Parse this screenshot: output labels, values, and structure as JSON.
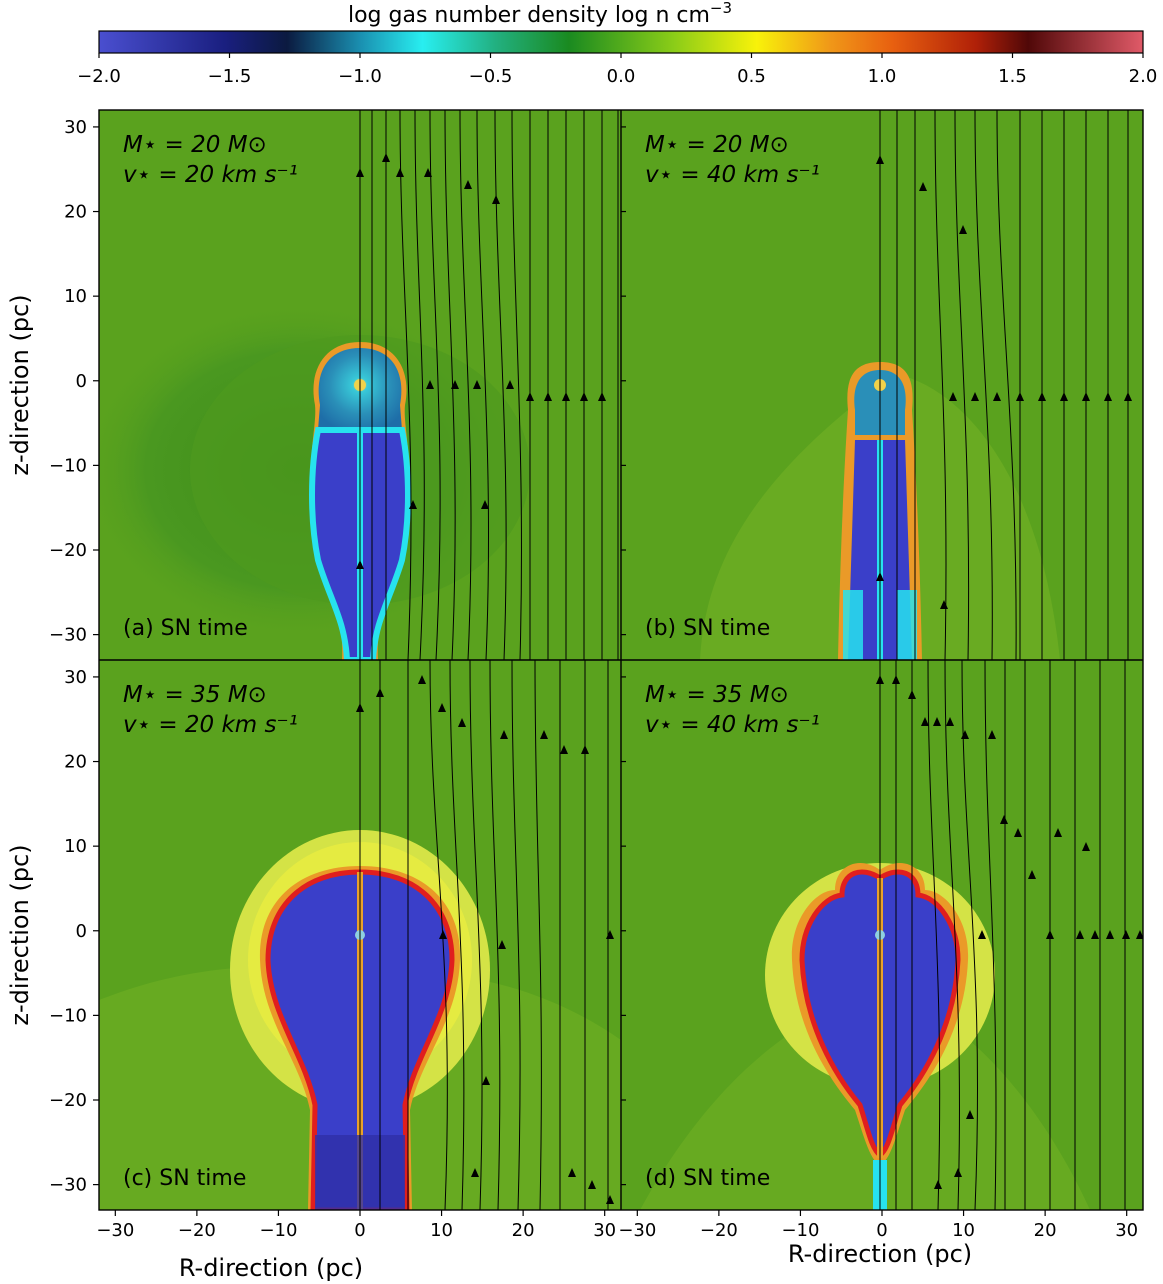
{
  "figure": {
    "colorbar": {
      "label": "log gas number density log n cm",
      "label_superscript": "−3",
      "ticks": [
        "−2.0",
        "−1.5",
        "−1.0",
        "−0.5",
        "0.0",
        "0.5",
        "1.0",
        "1.5",
        "2.0"
      ],
      "range": [
        -2.0,
        2.0
      ]
    },
    "x_axis_label": "R-direction (pc)",
    "y_axis_label": "z-direction (pc)",
    "x_ticks": [
      "−30",
      "−20",
      "−10",
      "0",
      "10",
      "20",
      "30"
    ],
    "y_ticks": [
      "30",
      "20",
      "10",
      "0",
      "−10",
      "−20",
      "−30"
    ],
    "colors": {
      "background_density": "#5aa21e",
      "bubble_low_density": "#3a3fc9",
      "cyan_shell": "#27e3ee",
      "orange_contour": "#f0a030",
      "red_contour": "#e01e1e",
      "yellow_shell": "#d8e64a"
    },
    "panels": [
      {
        "id": "a",
        "mass_line": "M⋆ = 20 M⊙",
        "vel_line": "v⋆ = 20 km s⁻¹",
        "caption": "(a) SN time"
      },
      {
        "id": "b",
        "mass_line": "M⋆ = 20 M⊙",
        "vel_line": "v⋆ = 40 km s⁻¹",
        "caption": "(b) SN time"
      },
      {
        "id": "c",
        "mass_line": "M⋆ = 35 M⊙",
        "vel_line": "v⋆ = 20 km s⁻¹",
        "caption": "(c) SN time"
      },
      {
        "id": "d",
        "mass_line": "M⋆ = 35 M⊙",
        "vel_line": "v⋆ = 40 km s⁻¹",
        "caption": "(d) SN time"
      }
    ]
  },
  "chart_data": {
    "type": "heatmap",
    "quantity": "log gas number density log n cm⁻³",
    "color_range": [
      -2.0,
      2.0
    ],
    "x_range": [
      -32,
      32
    ],
    "y_range": [
      -33,
      32
    ],
    "xlabel": "R-direction (pc)",
    "ylabel": "z-direction (pc)",
    "panels": [
      {
        "id": "a",
        "mass_Msun": 20,
        "velocity_kms": 20,
        "caption": "(a) SN time"
      },
      {
        "id": "b",
        "mass_Msun": 20,
        "velocity_kms": 40,
        "caption": "(b) SN time"
      },
      {
        "id": "c",
        "mass_Msun": 35,
        "velocity_kms": 20,
        "caption": "(c) SN time"
      },
      {
        "id": "d",
        "mass_Msun": 35,
        "velocity_kms": 40,
        "caption": "(d) SN time"
      }
    ]
  }
}
